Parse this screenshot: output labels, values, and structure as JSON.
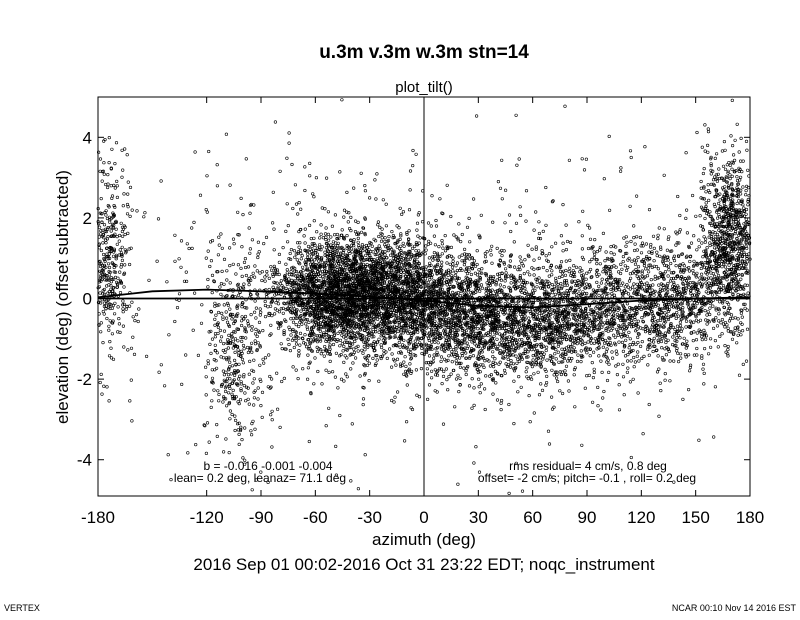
{
  "chart_data": {
    "type": "scatter",
    "title": "u.3m v.3m w.3m stn=14",
    "subtitle": "plot_tilt()",
    "xlabel": "azimuth (deg)",
    "ylabel": "elevation (deg)  (offset subtracted)",
    "xlim": [
      -180,
      180
    ],
    "ylim": [
      -4.9,
      5.0
    ],
    "xticks": [
      -180,
      -120,
      -90,
      -60,
      -30,
      0,
      30,
      60,
      90,
      120,
      150,
      180
    ],
    "yticks": [
      -4,
      -2,
      0,
      2,
      4
    ],
    "vline_x": 0,
    "fit_curves": [
      {
        "x": [
          -180,
          -150,
          -120,
          -90,
          -60,
          -30,
          0,
          30,
          60,
          90,
          120,
          150,
          180
        ],
        "y": [
          0.03,
          0.18,
          0.22,
          0.18,
          0.12,
          0.05,
          -0.05,
          -0.18,
          -0.22,
          -0.14,
          -0.05,
          0.0,
          0.03
        ]
      },
      {
        "x": [
          -180,
          -150,
          -120,
          -90,
          -60,
          -30,
          0,
          30,
          60,
          90,
          120,
          150,
          180
        ],
        "y": [
          0.0,
          0.0,
          0.0,
          0.0,
          0.0,
          0.0,
          0.0,
          0.0,
          0.0,
          0.0,
          0.0,
          0.0,
          0.0
        ]
      }
    ],
    "point_clusters": [
      {
        "x_center": -50,
        "x_spread": 18,
        "y_center": 0.05,
        "y_spread": 0.7,
        "count": 2000
      },
      {
        "x_center": -20,
        "x_spread": 18,
        "y_center": 0.25,
        "y_spread": 0.7,
        "count": 1300
      },
      {
        "x_center": 10,
        "x_spread": 20,
        "y_center": -0.35,
        "y_spread": 0.7,
        "count": 1200
      },
      {
        "x_center": 50,
        "x_spread": 22,
        "y_center": -0.6,
        "y_spread": 0.7,
        "count": 1100
      },
      {
        "x_center": 95,
        "x_spread": 25,
        "y_center": -0.3,
        "y_spread": 0.75,
        "count": 1100
      },
      {
        "x_center": 140,
        "x_spread": 15,
        "y_center": 0.0,
        "y_spread": 0.7,
        "count": 600
      },
      {
        "x_center": 168,
        "x_spread": 8,
        "y_center": 1.5,
        "y_spread": 1.0,
        "count": 900
      },
      {
        "x_center": -175,
        "x_spread": 6,
        "y_center": 1.0,
        "y_spread": 1.3,
        "count": 400
      },
      {
        "x_center": -105,
        "x_spread": 8,
        "y_center": -1.2,
        "y_spread": 1.3,
        "count": 350
      },
      {
        "x_center": 0,
        "x_spread": 110,
        "y_center": 0.0,
        "y_spread": 2.0,
        "count": 700
      }
    ],
    "annotations": {
      "left_line1": "b = -0.016 -0.001 -0.004",
      "left_line2": "lean= 0.2 deg, leanaz= 71.1 deg",
      "right_line1": "rms residual= 4 cm/s, 0.8 deg",
      "right_line2": "offset= -2 cm/s; pitch= -0.1 , roll=  0.2 deg"
    },
    "footer": "2016 Sep 01 00:02-2016 Oct 31 23:22 EDT; noqc_instrument"
  },
  "corners": {
    "left": "VERTEX",
    "right": "NCAR 00:10 Nov 14 2016 EST"
  }
}
